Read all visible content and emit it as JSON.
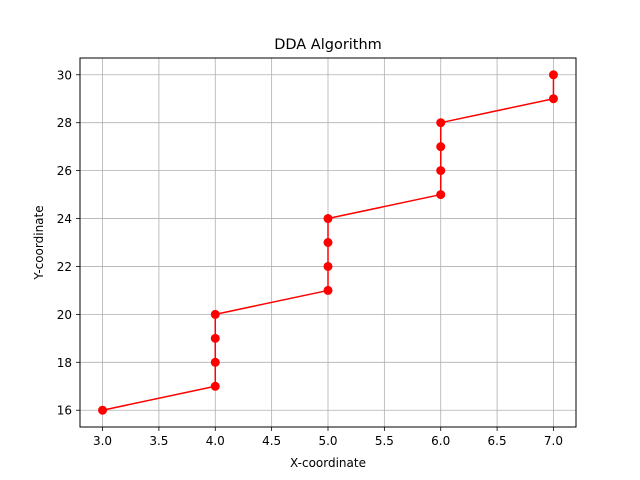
{
  "chart_data": {
    "type": "line",
    "title": "DDA Algorithm",
    "xlabel": "X-coordinate",
    "ylabel": "Y-coordinate",
    "xlim": [
      2.8,
      7.2
    ],
    "ylim": [
      15.3,
      30.7
    ],
    "xticks": [
      "3.0",
      "3.5",
      "4.0",
      "4.5",
      "5.0",
      "5.5",
      "6.0",
      "6.5",
      "7.0"
    ],
    "yticks": [
      "16",
      "18",
      "20",
      "22",
      "24",
      "26",
      "28",
      "30"
    ],
    "grid": true,
    "legend": "none",
    "series": [
      {
        "color": "#ff0000",
        "marker": "circle",
        "x": [
          3,
          4,
          4,
          4,
          4,
          5,
          5,
          5,
          5,
          6,
          6,
          6,
          6,
          7,
          7
        ],
        "y": [
          16,
          17,
          18,
          19,
          20,
          21,
          22,
          23,
          24,
          25,
          26,
          27,
          28,
          29,
          30
        ]
      }
    ]
  },
  "colors": {
    "line": "#ff0000",
    "grid": "#b0b0b0",
    "axes": "#000000",
    "background": "#ffffff"
  }
}
